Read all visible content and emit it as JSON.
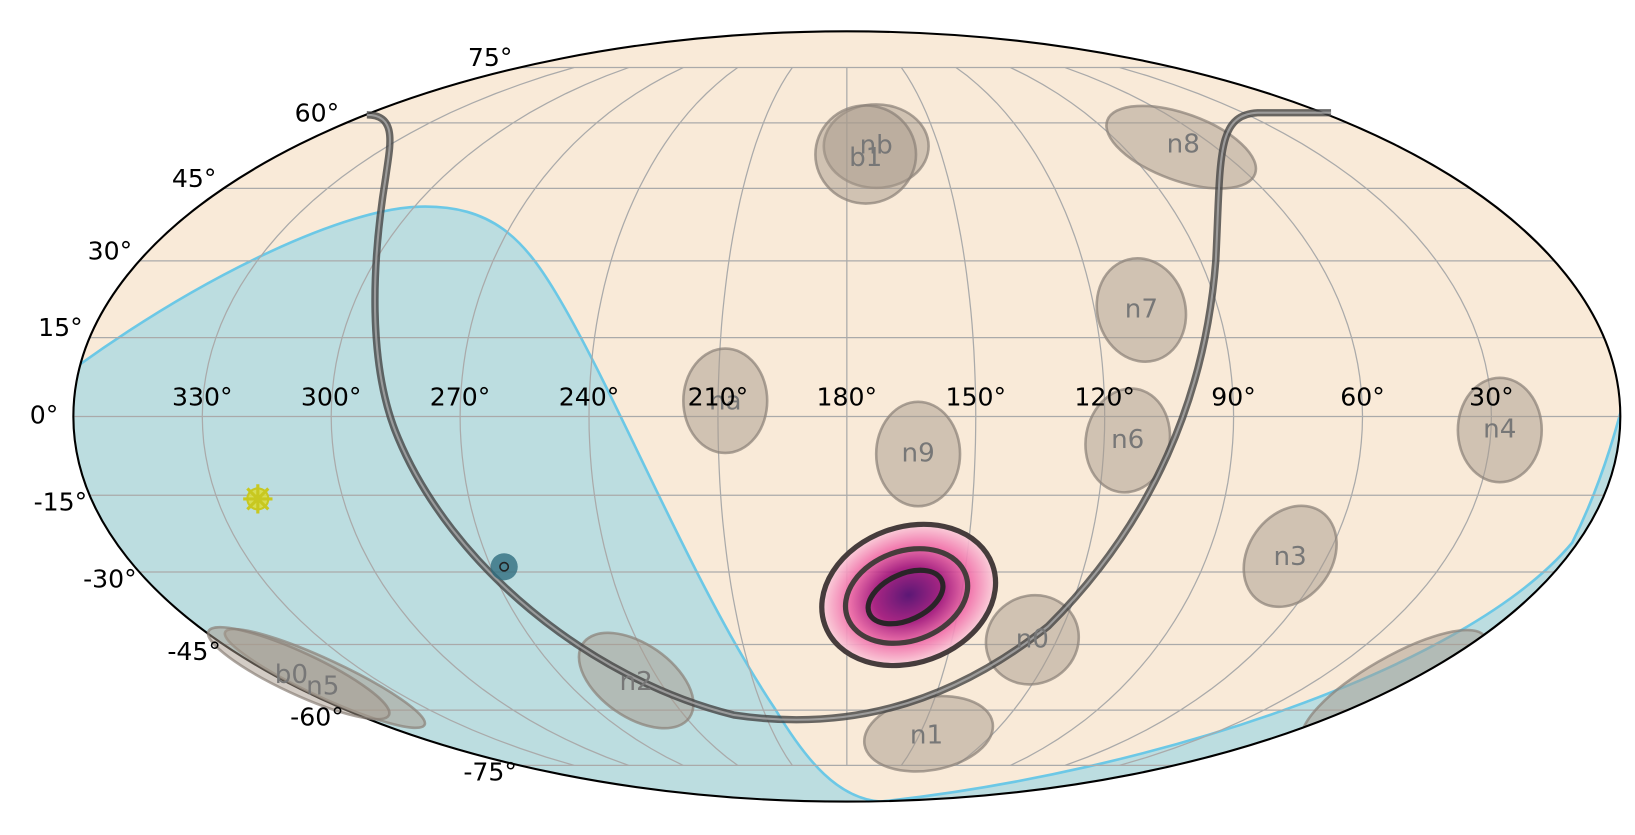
{
  "map": {
    "longitude_labels": [
      "330°",
      "300°",
      "270°",
      "240°",
      "210°",
      "180°",
      "150°",
      "120°",
      "90°",
      "60°",
      "30°"
    ],
    "latitude_labels": [
      "75°",
      "60°",
      "45°",
      "30°",
      "15°",
      "0°",
      "-15°",
      "-30°",
      "-45°",
      "-60°",
      "-75°"
    ],
    "detectors": [
      "nb",
      "b1",
      "n8",
      "n7",
      "na",
      "n9",
      "n6",
      "n4",
      "n3",
      "n0",
      "n1",
      "n2",
      "n5",
      "b0"
    ]
  }
}
